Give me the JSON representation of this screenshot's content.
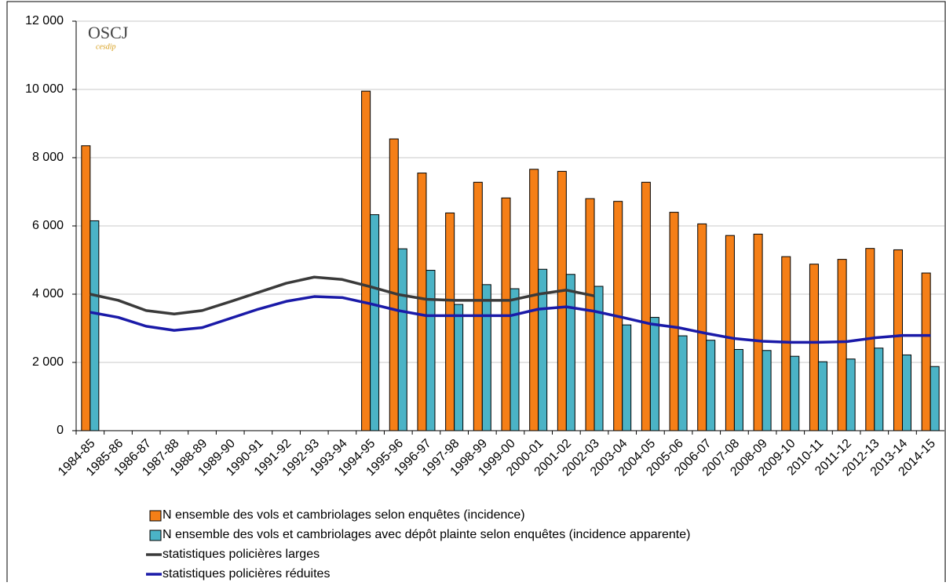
{
  "chart_data": {
    "type": "bar",
    "logo": "OSCJ",
    "logo_sub": "cesdip",
    "categories": [
      "1984-85",
      "1985-86",
      "1986-87",
      "1987-88",
      "1988-89",
      "1989-90",
      "1990-91",
      "1991-92",
      "1992-93",
      "1993-94",
      "1994-95",
      "1995-96",
      "1996-97",
      "1997-98",
      "1998-99",
      "1999-00",
      "2000-01",
      "2001-02",
      "2002-03",
      "2003-04",
      "2004-05",
      "2005-06",
      "2006-07",
      "2007-08",
      "2008-09",
      "2009-10",
      "2010-11",
      "2011-12",
      "2012-13",
      "2013-14",
      "2014-15"
    ],
    "series": [
      {
        "name": "N ensemble des vols et cambriolages selon enquêtes (incidence)",
        "type": "bar",
        "color": "#f57f17",
        "values": [
          8350,
          null,
          null,
          null,
          null,
          null,
          null,
          null,
          null,
          null,
          9950,
          8550,
          7550,
          6380,
          7280,
          6820,
          7660,
          7600,
          6800,
          6720,
          7280,
          6400,
          6060,
          5720,
          5760,
          5100,
          4880,
          5020,
          5340,
          5300,
          4620
        ]
      },
      {
        "name": "N ensemble des vols et cambriolages avec dépôt plainte selon enquêtes (incidence apparente)",
        "type": "bar",
        "color": "#4bb3c6",
        "values": [
          6150,
          null,
          null,
          null,
          null,
          null,
          null,
          null,
          null,
          null,
          6330,
          5330,
          4700,
          3700,
          4280,
          4160,
          4730,
          4580,
          4230,
          3100,
          3320,
          2780,
          2650,
          2380,
          2350,
          2180,
          2020,
          2100,
          2420,
          2220,
          1880
        ]
      },
      {
        "name": "statistiques policières larges",
        "type": "line",
        "color": "#3a3a3a",
        "values": [
          4000,
          3820,
          3520,
          3420,
          3520,
          3780,
          4050,
          4320,
          4500,
          4430,
          4220,
          3990,
          3850,
          3820,
          3820,
          3820,
          4000,
          4120,
          3950,
          null,
          null,
          null,
          null,
          null,
          null,
          null,
          null,
          null,
          null,
          null,
          null
        ]
      },
      {
        "name": "statistiques policières réduites",
        "type": "line",
        "color": "#1a1aa8",
        "values": [
          3470,
          3320,
          3060,
          2940,
          3020,
          3290,
          3560,
          3790,
          3930,
          3900,
          3720,
          3520,
          3370,
          3370,
          3370,
          3370,
          3560,
          3630,
          3500,
          3320,
          3130,
          3020,
          2850,
          2700,
          2620,
          2590,
          2590,
          2610,
          2720,
          2790,
          2790
        ]
      }
    ],
    "ylim": [
      0,
      12000
    ],
    "yticks": [
      0,
      {
        "value": 2000,
        "label": "2 000"
      },
      {
        "value": 4000,
        "label": "4 000"
      },
      {
        "value": 6000,
        "label": "6 000"
      },
      {
        "value": 8000,
        "label": "8 000"
      },
      {
        "value": 10000,
        "label": "10 000"
      },
      {
        "value": 12000,
        "label": "12 000"
      }
    ],
    "grid": true
  }
}
